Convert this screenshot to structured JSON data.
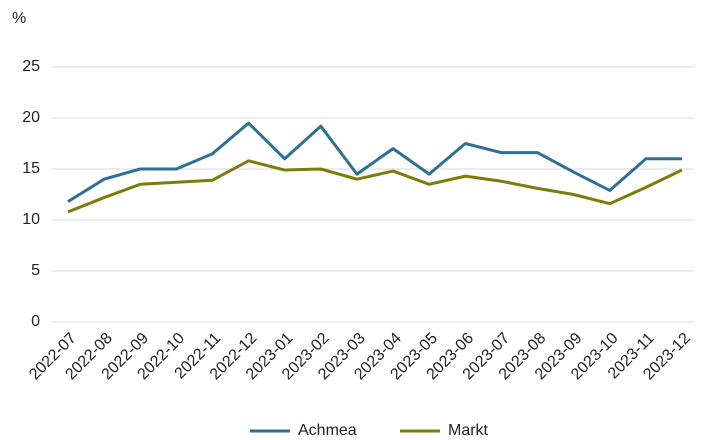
{
  "chart_data": {
    "type": "line",
    "y_label": "%",
    "categories": [
      "2022-07",
      "2022-08",
      "2022-09",
      "2022-10",
      "2022-11",
      "2022-12",
      "2023-01",
      "2023-02",
      "2023-03",
      "2023-04",
      "2023-05",
      "2023-06",
      "2023-07",
      "2023-08",
      "2023-09",
      "2023-10",
      "2023-11",
      "2023-12"
    ],
    "series": [
      {
        "name": "Achmea",
        "color": "#2e6f96",
        "values": [
          11.8,
          14.0,
          15.0,
          15.0,
          16.5,
          19.5,
          16.0,
          19.2,
          14.5,
          17.0,
          14.5,
          17.5,
          16.6,
          16.6,
          14.7,
          12.9,
          16.0,
          16.0
        ]
      },
      {
        "name": "Markt",
        "color": "#7b7d0a",
        "values": [
          10.8,
          12.2,
          13.5,
          13.7,
          13.9,
          15.8,
          14.9,
          15.0,
          14.0,
          14.8,
          13.5,
          14.3,
          13.8,
          13.1,
          12.5,
          11.6,
          13.2,
          14.9
        ]
      }
    ],
    "ylim": [
      0,
      25
    ],
    "yticks": [
      0,
      5,
      10,
      15,
      20,
      25
    ],
    "grid": true,
    "legend": "bottom"
  }
}
